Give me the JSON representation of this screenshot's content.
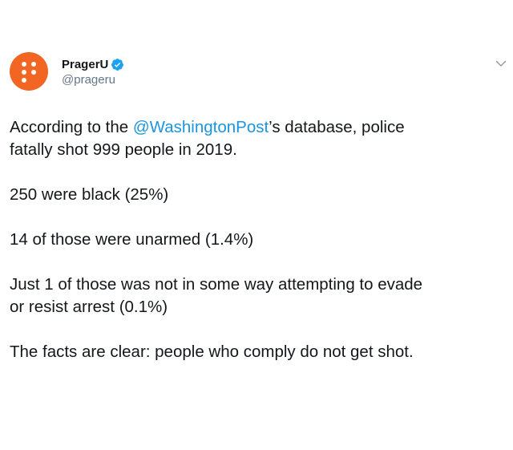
{
  "account": {
    "display_name": "PragerU",
    "handle": "@prageru",
    "verified_icon": "verified-badge-icon",
    "avatar_color": "#f26522"
  },
  "menu": {
    "icon": "chevron-down-icon"
  },
  "tweet": {
    "line1_prefix": "According to the ",
    "mention": "@WashingtonPost",
    "line1_suffix": "’s database, police",
    "line2": "fatally shot 999 people in 2019.",
    "para2": "250 were black (25%)",
    "para3": "14 of those were unarmed (1.4%)",
    "para4_line1": "Just 1 of those was not in some way attempting to evade",
    "para4_line2": "or resist arrest (0.1%)",
    "para5": "The facts are clear: people who comply do not get shot."
  },
  "colors": {
    "text": "#14171a",
    "secondary": "#657786",
    "link": "#1b95e0",
    "verified": "#1da1f2"
  }
}
